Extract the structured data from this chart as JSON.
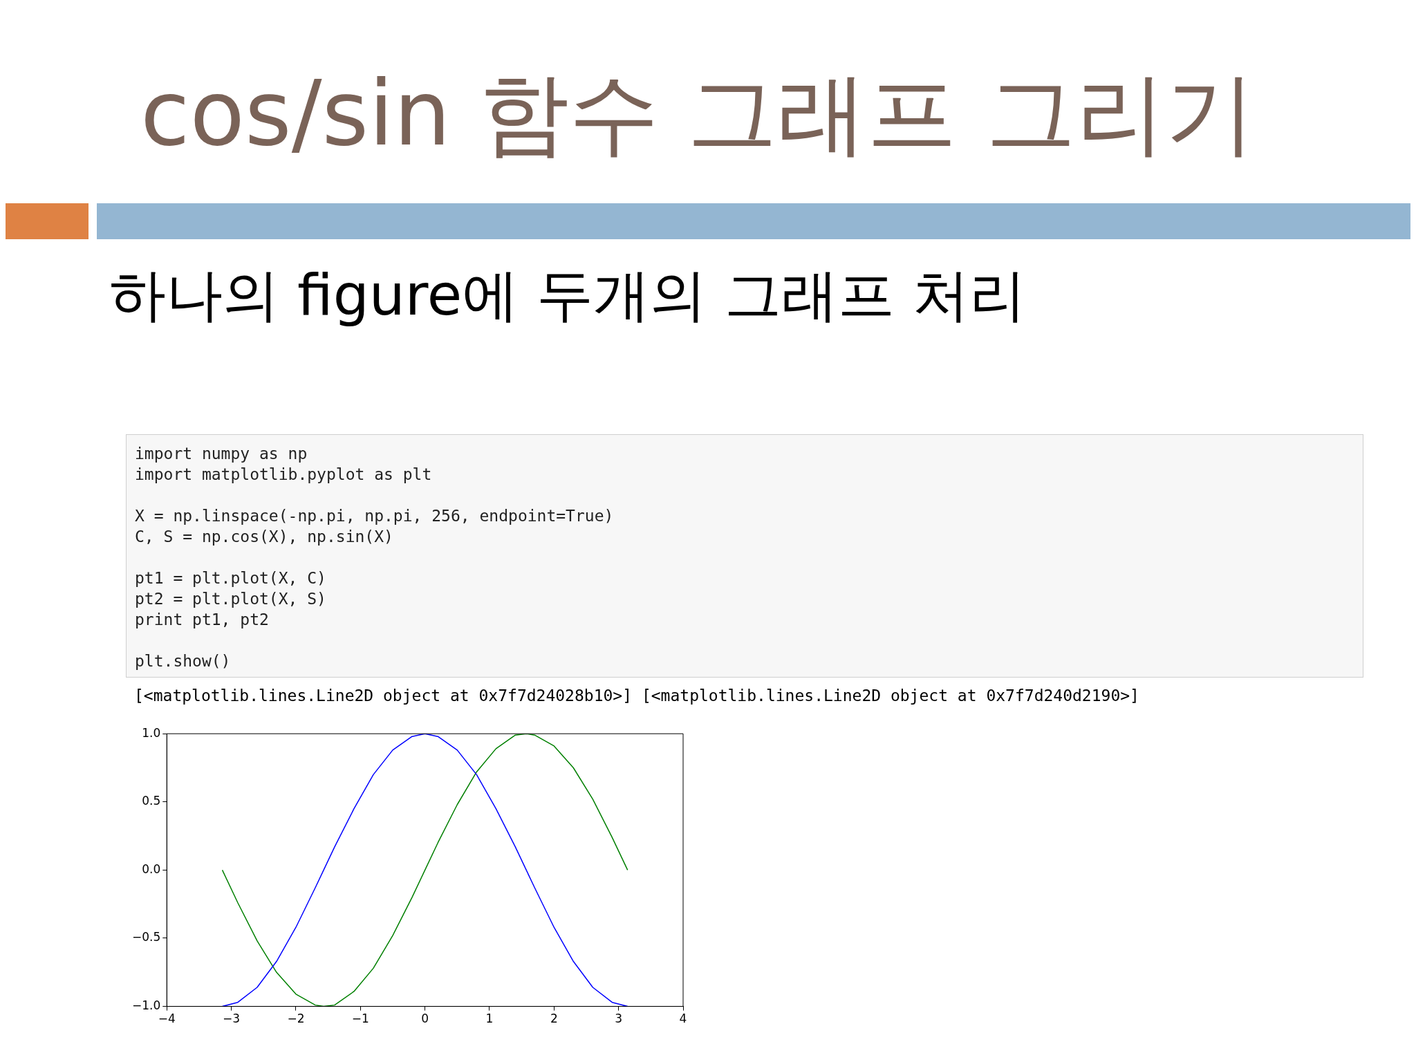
{
  "chart_data": {
    "type": "line",
    "title": "cos/sin 함수 그래프 그리기",
    "subtitle": "하나의 figure에 두개의 그래프 처리",
    "annotations": [
      "import numpy as np\nimport matplotlib.pyplot as plt",
      "X = np.linspace(-np.pi, np.pi, 256, endpoint=True)\nC, S = np.cos(X), np.sin(X)",
      "pt1 = plt.plot(X, C)\npt2 = plt.plot(X, S)\nprint pt1, pt2",
      "plt.show()",
      "[<matplotlib.lines.Line2D object at 0x7f7d24028b10>] [<matplotlib.lines.Line2D object at 0x7f7d240d2190>]"
    ],
    "x": [
      -3.14,
      -2.9,
      -2.6,
      -2.3,
      -2.0,
      -1.7,
      -1.57,
      -1.4,
      -1.1,
      -0.8,
      -0.5,
      -0.2,
      0,
      0.2,
      0.5,
      0.8,
      1.1,
      1.4,
      1.57,
      1.7,
      2.0,
      2.3,
      2.6,
      2.9,
      3.14
    ],
    "series": [
      {
        "color": "#0000ff",
        "values": [
          -1.0,
          -0.97,
          -0.86,
          -0.67,
          -0.42,
          -0.13,
          0.0,
          0.17,
          0.45,
          0.7,
          0.88,
          0.98,
          1.0,
          0.98,
          0.88,
          0.7,
          0.45,
          0.17,
          0.0,
          -0.13,
          -0.42,
          -0.67,
          -0.86,
          -0.97,
          -1.0
        ]
      },
      {
        "color": "#008000",
        "values": [
          0.0,
          -0.24,
          -0.52,
          -0.75,
          -0.91,
          -0.99,
          -1.0,
          -0.99,
          -0.89,
          -0.72,
          -0.48,
          -0.2,
          0.0,
          0.2,
          0.48,
          0.72,
          0.89,
          0.99,
          1.0,
          0.99,
          0.91,
          0.75,
          0.52,
          0.24,
          0.0
        ]
      }
    ],
    "xlim": [
      -4,
      4
    ],
    "xticks": [
      {
        "value": -4,
        "label": "−4"
      },
      {
        "value": -3,
        "label": "−3"
      },
      {
        "value": -2,
        "label": "−2"
      },
      {
        "value": -1,
        "label": "−1"
      },
      0,
      1,
      2,
      3,
      4
    ],
    "ylim": [
      -1,
      1
    ],
    "yticks": [
      {
        "value": -1,
        "label": "−1.0"
      },
      {
        "value": -0.5,
        "label": "−0.5"
      },
      {
        "value": 0,
        "label": "0.0"
      },
      {
        "value": 0.5,
        "label": "0.5"
      },
      {
        "value": 1,
        "label": "1.0"
      }
    ],
    "grid": false,
    "legend": false,
    "marker": "none",
    "line_style": "solid"
  }
}
